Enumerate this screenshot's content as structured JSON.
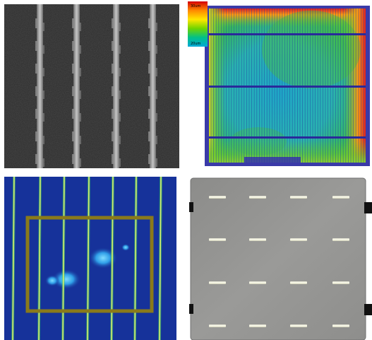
{
  "figure": {
    "panels": [
      {
        "name": "sem-image"
      },
      {
        "name": "thickness-color-map"
      },
      {
        "name": "luminescence-map"
      },
      {
        "name": "wafer-photo"
      }
    ],
    "colorbar": {
      "top_label": "30um",
      "bottom_label": "20um",
      "colors": [
        "#d40000",
        "#ff8a00",
        "#ffe600",
        "#6fd400",
        "#00c08a",
        "#00a8d8"
      ]
    }
  }
}
